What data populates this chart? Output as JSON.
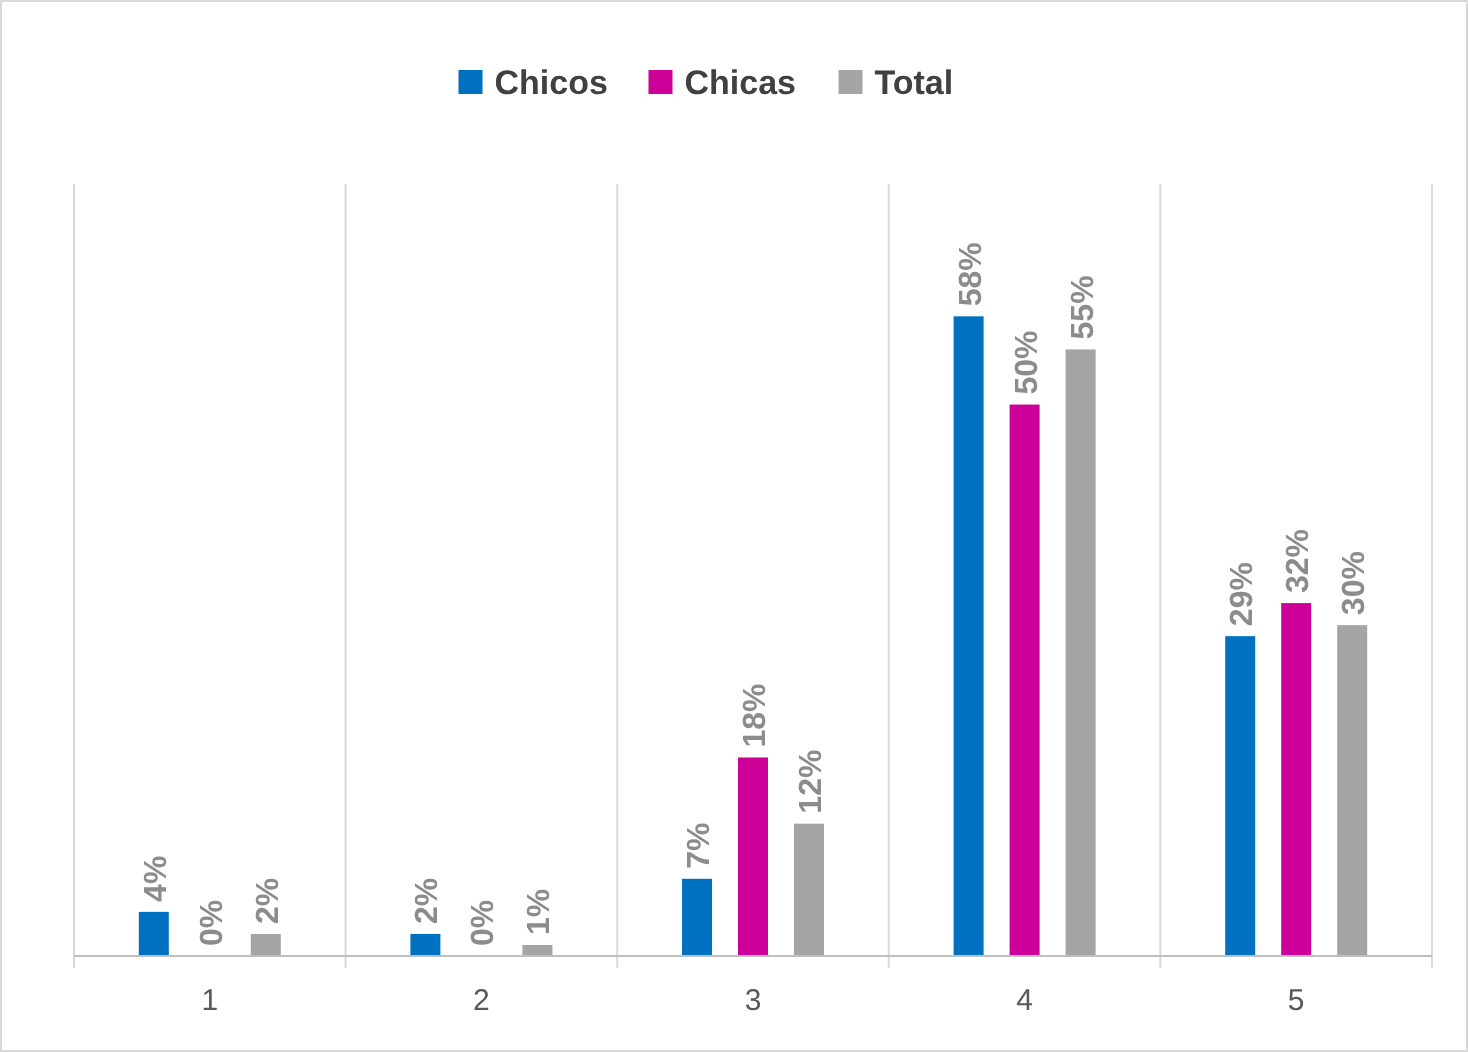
{
  "chart_data": {
    "type": "bar",
    "categories": [
      "1",
      "2",
      "3",
      "4",
      "5"
    ],
    "ylim": [
      0,
      70
    ],
    "grid": "x",
    "legend": "top",
    "tick_labels": "x",
    "series": [
      {
        "name": "Chicos",
        "color": "#0070c0",
        "values": [
          4,
          2,
          7,
          58,
          29
        ],
        "value_labels": [
          "4%",
          "2%",
          "7%",
          "58%",
          "29%"
        ]
      },
      {
        "name": "Chicas",
        "color": "#cc0099",
        "values": [
          0,
          0,
          18,
          50,
          32
        ],
        "value_labels": [
          "0%",
          "0%",
          "18%",
          "50%",
          "32%"
        ]
      },
      {
        "name": "Total",
        "color": "#a5a5a5",
        "values": [
          2,
          1,
          12,
          55,
          30
        ],
        "value_labels": [
          "2%",
          "1%",
          "12%",
          "55%",
          "30%"
        ]
      }
    ]
  }
}
